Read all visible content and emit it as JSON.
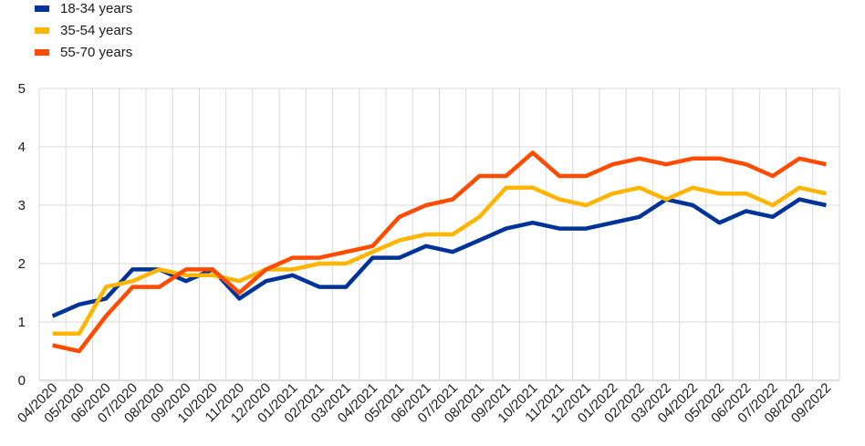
{
  "chart_data": {
    "type": "line",
    "title": "",
    "xlabel": "",
    "ylabel": "",
    "ylim": [
      0,
      5
    ],
    "yticks": [
      "0",
      "1",
      "2",
      "3",
      "4",
      "5"
    ],
    "grid": true,
    "legend_position": "top-left",
    "categories": [
      "04/2020",
      "05/2020",
      "06/2020",
      "07/2020",
      "08/2020",
      "09/2020",
      "10/2020",
      "11/2020",
      "12/2020",
      "01/2021",
      "02/2021",
      "03/2021",
      "04/2021",
      "05/2021",
      "06/2021",
      "07/2021",
      "08/2021",
      "09/2021",
      "10/2021",
      "11/2021",
      "12/2021",
      "01/2022",
      "02/2022",
      "03/2022",
      "04/2022",
      "05/2022",
      "06/2022",
      "07/2022",
      "08/2022",
      "09/2022"
    ],
    "series": [
      {
        "name": "18-34 years",
        "color": "#003399",
        "values": [
          1.1,
          1.3,
          1.4,
          1.9,
          1.9,
          1.7,
          1.9,
          1.4,
          1.7,
          1.8,
          1.6,
          1.6,
          2.1,
          2.1,
          2.3,
          2.2,
          2.4,
          2.6,
          2.7,
          2.6,
          2.6,
          2.7,
          2.8,
          3.1,
          3.0,
          2.7,
          2.9,
          2.8,
          3.1,
          3.0
        ]
      },
      {
        "name": "35-54 years",
        "color": "#FFB400",
        "values": [
          0.8,
          0.8,
          1.6,
          1.7,
          1.9,
          1.8,
          1.8,
          1.7,
          1.9,
          1.9,
          2.0,
          2.0,
          2.2,
          2.4,
          2.5,
          2.5,
          2.8,
          3.3,
          3.3,
          3.1,
          3.0,
          3.2,
          3.3,
          3.1,
          3.3,
          3.2,
          3.2,
          3.0,
          3.3,
          3.2
        ]
      },
      {
        "name": "55-70 years",
        "color": "#FF4B00",
        "values": [
          0.6,
          0.5,
          1.1,
          1.6,
          1.6,
          1.9,
          1.9,
          1.5,
          1.9,
          2.1,
          2.1,
          2.2,
          2.3,
          2.8,
          3.0,
          3.1,
          3.5,
          3.5,
          3.9,
          3.5,
          3.5,
          3.7,
          3.8,
          3.7,
          3.8,
          3.8,
          3.7,
          3.5,
          3.8,
          3.7
        ]
      }
    ]
  }
}
